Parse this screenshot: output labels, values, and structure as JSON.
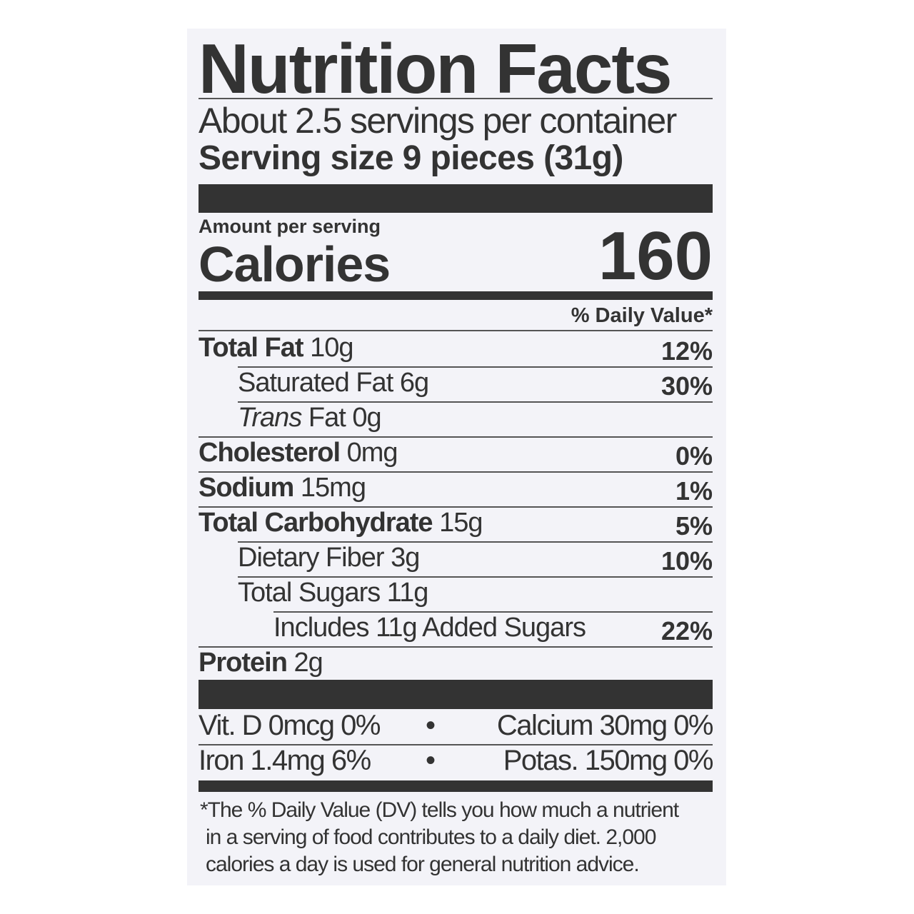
{
  "title": "Nutrition Facts",
  "servings_per_container": "About 2.5 servings per container",
  "serving_size": "Serving size 9 pieces (31g)",
  "amount_per_serving": "Amount per serving",
  "calories_label": "Calories",
  "calories_value": "160",
  "daily_value_header": "% Daily Value*",
  "nutrients": [
    {
      "name": "Total Fat",
      "amount": "10g",
      "dv": "12%",
      "bold": true,
      "indent": 0
    },
    {
      "name": "Saturated Fat",
      "amount": "6g",
      "dv": "30%",
      "bold": false,
      "indent": 1
    },
    {
      "name": "Trans",
      "name_suffix": "Fat",
      "amount": "0g",
      "dv": "",
      "bold": false,
      "indent": 1
    },
    {
      "name": "Cholesterol",
      "amount": "0mg",
      "dv": "0%",
      "bold": true,
      "indent": 0
    },
    {
      "name": "Sodium",
      "amount": "15mg",
      "dv": "1%",
      "bold": true,
      "indent": 0
    },
    {
      "name": "Total Carbohydrate",
      "amount": "15g",
      "dv": "5%",
      "bold": true,
      "indent": 0
    },
    {
      "name": "Dietary Fiber",
      "amount": "3g",
      "dv": "10%",
      "bold": false,
      "indent": 1
    },
    {
      "name": "Total Sugars",
      "amount": "11g",
      "dv": "",
      "bold": false,
      "indent": 1
    },
    {
      "name": "Includes 11g Added Sugars",
      "amount": "",
      "dv": "22%",
      "bold": false,
      "indent": 2
    },
    {
      "name": "Protein",
      "amount": "2g",
      "dv": "",
      "bold": true,
      "indent": 0
    }
  ],
  "vitamins": [
    {
      "left": "Vit. D 0mcg 0%",
      "sep": "•",
      "right": "Calcium 30mg 0%"
    },
    {
      "left": "Iron 1.4mg 6%",
      "sep": "•",
      "right": "Potas. 150mg 0%"
    }
  ],
  "footnote": [
    "*The % Daily Value (DV) tells you how much a nutrient",
    "in a serving of food contributes to a daily diet. 2,000",
    "calories a day is used for general nutrition advice."
  ],
  "colors": {
    "ink": "#333333",
    "panel": "#f3f3f8"
  }
}
